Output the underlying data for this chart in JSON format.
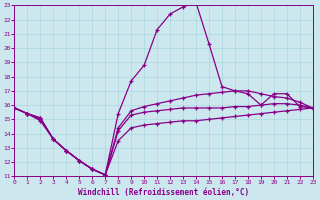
{
  "xlabel": "Windchill (Refroidissement éolien,°C)",
  "background_color": "#cce8ee",
  "line_color": "#880088",
  "xlim": [
    0,
    23
  ],
  "ylim": [
    11,
    23
  ],
  "xticks": [
    0,
    1,
    2,
    3,
    4,
    5,
    6,
    7,
    8,
    9,
    10,
    11,
    12,
    13,
    14,
    15,
    16,
    17,
    18,
    19,
    20,
    21,
    22,
    23
  ],
  "yticks": [
    11,
    12,
    13,
    14,
    15,
    16,
    17,
    18,
    19,
    20,
    21,
    22,
    23
  ],
  "x": [
    0,
    1,
    2,
    3,
    4,
    5,
    6,
    7,
    8,
    9,
    10,
    11,
    12,
    13,
    14,
    15,
    16,
    17,
    18,
    19,
    20,
    21,
    22,
    23
  ],
  "curve1": [
    15.8,
    15.4,
    14.9,
    13.6,
    12.8,
    12.1,
    11.5,
    11.1,
    13.5,
    14.4,
    14.6,
    14.7,
    14.8,
    14.9,
    14.9,
    15.0,
    15.1,
    15.2,
    15.3,
    15.4,
    15.5,
    15.6,
    15.7,
    15.8
  ],
  "curve2": [
    15.8,
    15.4,
    15.0,
    13.6,
    12.8,
    12.1,
    11.5,
    11.1,
    15.4,
    17.7,
    18.8,
    21.3,
    22.4,
    22.9,
    23.2,
    20.3,
    17.3,
    17.0,
    16.8,
    16.0,
    16.8,
    16.8,
    15.9,
    15.8
  ],
  "curve3": [
    15.8,
    15.4,
    15.1,
    13.6,
    12.8,
    12.1,
    11.5,
    11.1,
    14.4,
    15.6,
    15.9,
    16.1,
    16.3,
    16.5,
    16.7,
    16.8,
    16.9,
    17.0,
    17.0,
    16.8,
    16.6,
    16.5,
    16.2,
    15.8
  ],
  "curve4": [
    15.8,
    15.4,
    15.1,
    13.6,
    12.8,
    12.1,
    11.5,
    11.1,
    14.2,
    15.3,
    15.5,
    15.6,
    15.7,
    15.8,
    15.8,
    15.8,
    15.8,
    15.9,
    15.9,
    16.0,
    16.1,
    16.1,
    16.0,
    15.8
  ]
}
